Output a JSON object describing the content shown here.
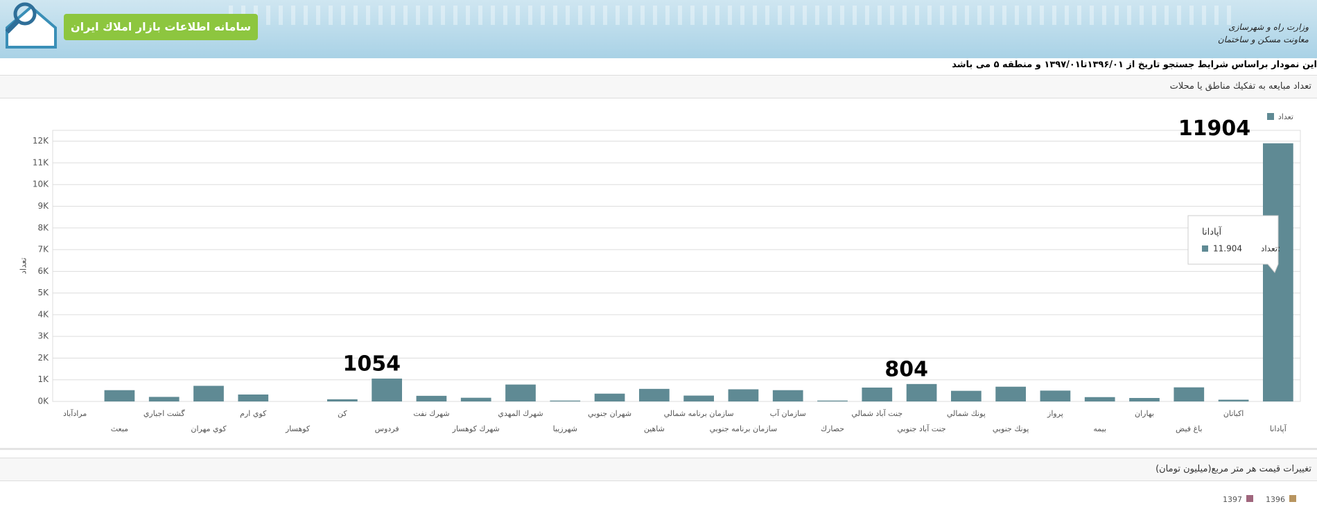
{
  "header": {
    "title": "سامانه اطلاعات بازار املاك ايران",
    "ministry_line1": "وزارت راه و شهرسازی",
    "ministry_line2": "معاونت مسکن و ساختمان"
  },
  "search_description": "اين نمودار براساس شرايط جستجو تاريخ از ۱۳۹۶/۰۱تا۱۳۹۷/۰۱ و منطقه ۵ مى باشد",
  "panels": [
    {
      "title": "تعداد مبايعه به تفكيك مناطق يا محلات"
    },
    {
      "title": "تغييرات قيمت هر متر مربع(ميليون تومان)",
      "legend": [
        {
          "name": "1397",
          "color": "#a0667d"
        },
        {
          "name": "1396",
          "color": "#b89560"
        }
      ]
    }
  ],
  "chart_data": {
    "type": "bar",
    "y_label": "تعداد",
    "categories": [
      "مرادآباد",
      "مبعث",
      "گشت اجباري",
      "كوي مهران",
      "كوي ارم",
      "كوهسار",
      "كن",
      "فردوس",
      "شهرك نفت",
      "شهرك كوهسار",
      "شهرك المهدي",
      "شهرزيبا",
      "شهران جنوبي",
      "شاهين",
      "سازمان برنامه شمالي",
      "سازمان برنامه جنوبي",
      "سازمان آب",
      "حصارك",
      "جنت آباد شمالي",
      "جنت آباد جنوبي",
      "پونك شمالي",
      "پونك جنوبي",
      "پرواز",
      "بيمه",
      "بهاران",
      "باغ فيض",
      "اكباتان",
      "آپادانا"
    ],
    "series": [
      {
        "name": "تعداد",
        "color": "#5f8a94",
        "values": [
          0,
          520,
          210,
          720,
          320,
          0,
          100,
          1054,
          260,
          170,
          780,
          40,
          360,
          580,
          270,
          560,
          520,
          40,
          640,
          804,
          490,
          680,
          500,
          200,
          160,
          650,
          80,
          11904
        ],
        "value_labels": [
          null,
          null,
          null,
          null,
          null,
          null,
          null,
          "1054",
          null,
          null,
          null,
          null,
          null,
          null,
          null,
          null,
          null,
          null,
          null,
          "804",
          null,
          null,
          null,
          null,
          null,
          null,
          null,
          "11904"
        ]
      }
    ],
    "ylim": [
      0,
      12500
    ],
    "yticks": [
      {
        "value": 0,
        "label": "0K"
      },
      {
        "value": 1000,
        "label": "1K"
      },
      {
        "value": 2000,
        "label": "2K"
      },
      {
        "value": 3000,
        "label": "3K"
      },
      {
        "value": 4000,
        "label": "4K"
      },
      {
        "value": 5000,
        "label": "5K"
      },
      {
        "value": 6000,
        "label": "6K"
      },
      {
        "value": 7000,
        "label": "7K"
      },
      {
        "value": 8000,
        "label": "8K"
      },
      {
        "value": 9000,
        "label": "9K"
      },
      {
        "value": 10000,
        "label": "10K"
      },
      {
        "value": 11000,
        "label": "11K"
      },
      {
        "value": 12000,
        "label": "12K"
      }
    ],
    "grid": true,
    "legend": "top-right",
    "tooltip": {
      "title": "آپادانا",
      "label": "تعداد:",
      "value": "11.904"
    }
  }
}
